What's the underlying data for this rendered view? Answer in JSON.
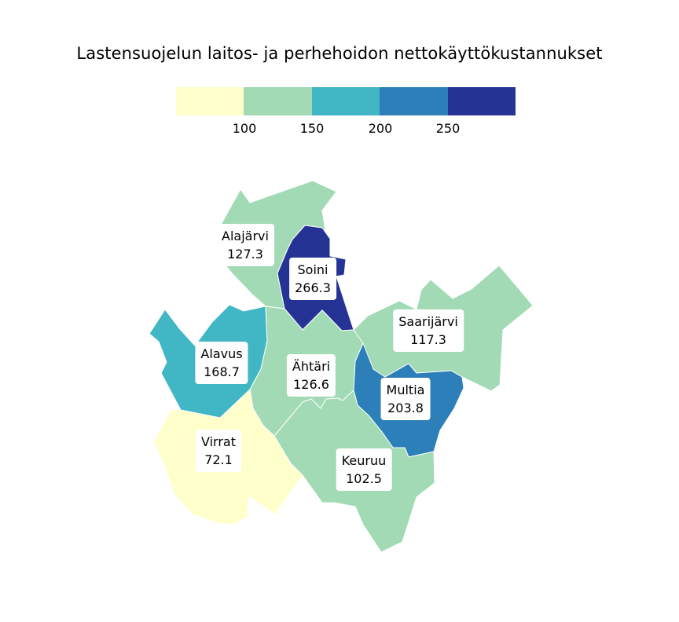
{
  "title": "Lastensuojelun laitos- ja perhehoidon nettokäyttökustannukset",
  "legend": {
    "colors": [
      "#ffffcc",
      "#a1dab4",
      "#41b6c4",
      "#2c7fb8",
      "#253494"
    ],
    "ticks": [
      "100",
      "150",
      "200",
      "250"
    ]
  },
  "regions": [
    {
      "name": "Alajärvi",
      "value": "127.3",
      "color": "#a1dab4"
    },
    {
      "name": "Soini",
      "value": "266.3",
      "color": "#253494"
    },
    {
      "name": "Saarijärvi",
      "value": "117.3",
      "color": "#a1dab4"
    },
    {
      "name": "Alavus",
      "value": "168.7",
      "color": "#41b6c4"
    },
    {
      "name": "Ähtäri",
      "value": "126.6",
      "color": "#a1dab4"
    },
    {
      "name": "Multia",
      "value": "203.8",
      "color": "#2c7fb8"
    },
    {
      "name": "Virrat",
      "value": "72.1",
      "color": "#ffffcc"
    },
    {
      "name": "Keuruu",
      "value": "102.5",
      "color": "#a1dab4"
    }
  ]
}
